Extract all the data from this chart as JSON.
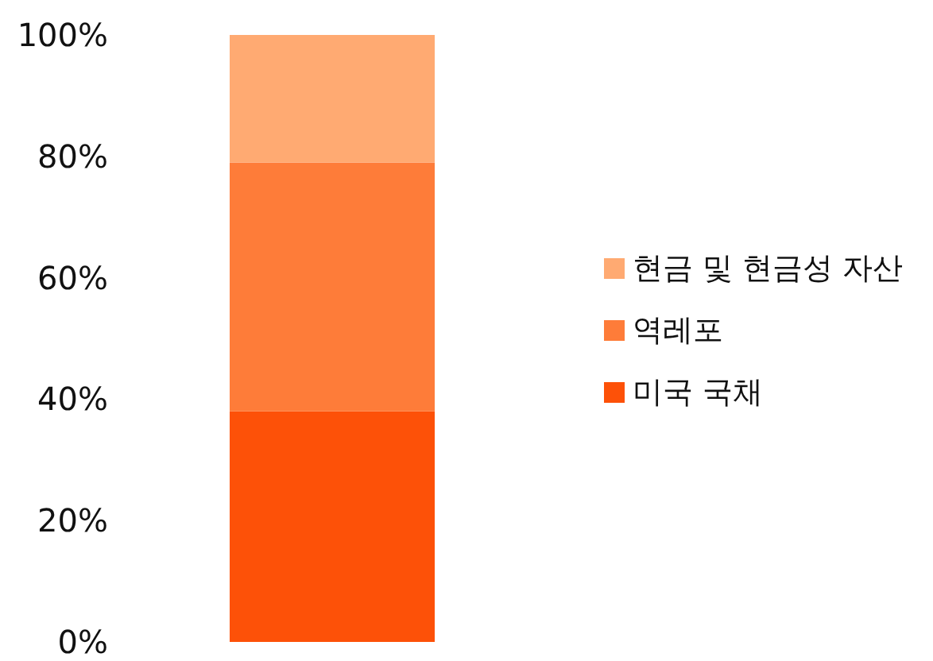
{
  "chart_data": {
    "type": "bar",
    "stacked": true,
    "categories": [
      null
    ],
    "series": [
      {
        "name": "미국 국채",
        "color": "#fd5108",
        "values": [
          38
        ]
      },
      {
        "name": "역레포",
        "color": "#fe7c39",
        "values": [
          41
        ]
      },
      {
        "name": "현금 및 현금성 자산",
        "color": "#ffaa72",
        "values": [
          21
        ]
      }
    ],
    "ylim": [
      0,
      100
    ],
    "yticks": [
      {
        "value": 0,
        "label": "0%"
      },
      {
        "value": 20,
        "label": "20%"
      },
      {
        "value": 40,
        "label": "40%"
      },
      {
        "value": 60,
        "label": "60%"
      },
      {
        "value": 80,
        "label": "80%"
      },
      {
        "value": 100,
        "label": "100%"
      }
    ],
    "grid": false,
    "legend": "right"
  }
}
